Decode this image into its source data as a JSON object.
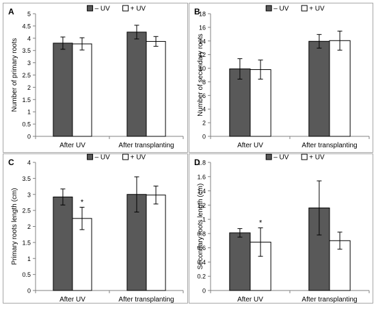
{
  "chart_data": [
    {
      "type": "bar",
      "panel_label": "A",
      "categories": [
        "After UV",
        "After transplanting"
      ],
      "series": [
        {
          "name": "– UV",
          "values": [
            3.8,
            4.25
          ],
          "errors": [
            0.25,
            0.28
          ],
          "color": "#595959"
        },
        {
          "name": "+ UV",
          "values": [
            3.77,
            3.87
          ],
          "errors": [
            0.25,
            0.2
          ],
          "color": "#ffffff"
        }
      ],
      "ylabel": "Number of primary roots",
      "ylim": [
        0,
        5
      ],
      "yticks": [
        "0",
        "0.5",
        "1",
        "1.5",
        "2",
        "2.5",
        "3",
        "3.5",
        "4",
        "4.5",
        "5"
      ],
      "annotations": [],
      "legend_position": "top"
    },
    {
      "type": "bar",
      "panel_label": "B",
      "categories": [
        "After UV",
        "After transplanting"
      ],
      "series": [
        {
          "name": "– UV",
          "values": [
            9.9,
            13.95
          ],
          "errors": [
            1.5,
            1.0
          ],
          "color": "#595959"
        },
        {
          "name": "+ UV",
          "values": [
            9.8,
            14.05
          ],
          "errors": [
            1.4,
            1.4
          ],
          "color": "#ffffff"
        }
      ],
      "ylabel": "Number of secondary roots",
      "ylim": [
        0,
        18
      ],
      "yticks": [
        "0",
        "2",
        "4",
        "6",
        "8",
        "10",
        "12",
        "14",
        "16",
        "18"
      ],
      "annotations": [],
      "legend_position": "top"
    },
    {
      "type": "bar",
      "panel_label": "C",
      "categories": [
        "After UV",
        "After transplanting"
      ],
      "series": [
        {
          "name": "– UV",
          "values": [
            2.92,
            3.0
          ],
          "errors": [
            0.25,
            0.55
          ],
          "color": "#595959"
        },
        {
          "name": "+ UV",
          "values": [
            2.25,
            2.98
          ],
          "errors": [
            0.35,
            0.28
          ],
          "color": "#ffffff"
        }
      ],
      "ylabel": "Primary  roots length (cm)",
      "ylim": [
        0,
        4
      ],
      "yticks": [
        "0",
        "0.5",
        "1",
        "1.5",
        "2",
        "2.5",
        "3",
        "3.5",
        "4"
      ],
      "annotations": [
        {
          "text": "*",
          "category": 0,
          "series": 1
        }
      ],
      "legend_position": "top"
    },
    {
      "type": "bar",
      "panel_label": "D",
      "categories": [
        "After UV",
        "After transplanting"
      ],
      "series": [
        {
          "name": "– UV",
          "values": [
            0.81,
            1.16
          ],
          "errors": [
            0.06,
            0.38
          ],
          "color": "#595959"
        },
        {
          "name": "+ UV",
          "values": [
            0.68,
            0.7
          ],
          "errors": [
            0.2,
            0.12
          ],
          "color": "#ffffff"
        }
      ],
      "ylabel": "Secondary roots length (cm)",
      "ylim": [
        0,
        1.8
      ],
      "yticks": [
        "0",
        "0.2",
        "0.4",
        "0.6",
        "0.8",
        "1",
        "1.2",
        "1.4",
        "1.6",
        "1.8"
      ],
      "annotations": [
        {
          "text": "*",
          "category": 0,
          "series": 1
        }
      ],
      "legend_position": "top"
    }
  ]
}
